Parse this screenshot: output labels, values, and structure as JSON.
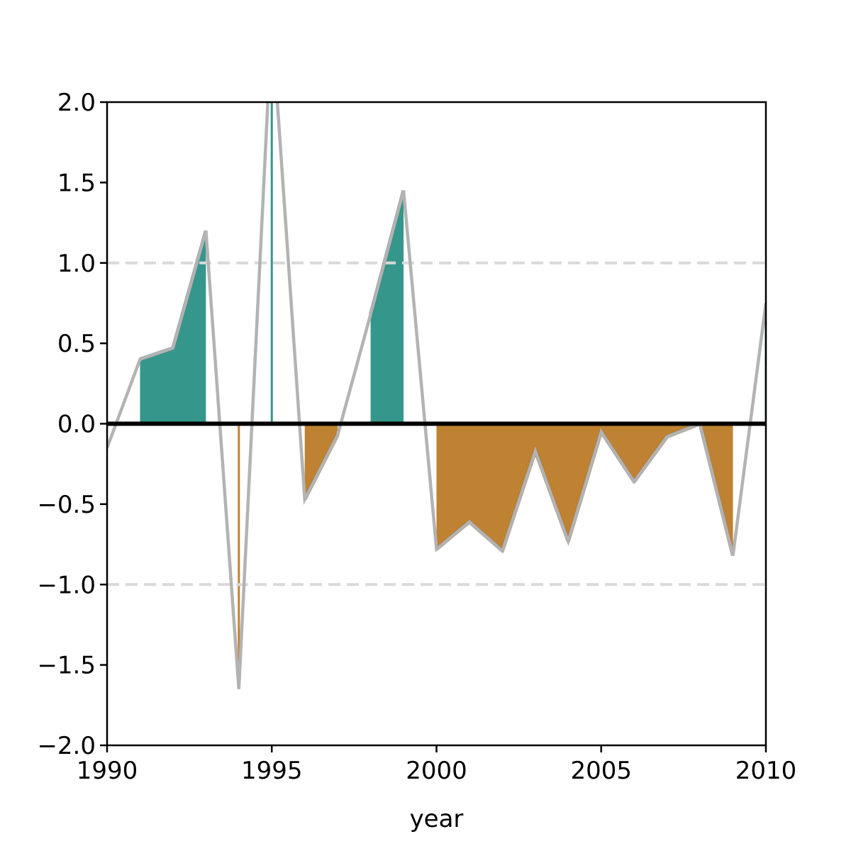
{
  "chart_data": {
    "type": "area",
    "title": "",
    "xlabel": "year",
    "ylabel": "",
    "xlim": [
      1990,
      2010
    ],
    "ylim": [
      -2.0,
      2.0
    ],
    "x_ticks": [
      1990,
      1995,
      2000,
      2005,
      2010
    ],
    "x_tick_labels": [
      "1990",
      "1995",
      "2000",
      "2005",
      "2010"
    ],
    "y_ticks": [
      -2.0,
      -1.5,
      -1.0,
      -0.5,
      0.0,
      0.5,
      1.0,
      1.5,
      2.0
    ],
    "y_tick_labels": [
      "−2.0",
      "−1.5",
      "−1.0",
      "−0.5",
      "0.0",
      "0.5",
      "1.0",
      "1.5",
      "2.0"
    ],
    "reference_lines": [
      1.0,
      -1.0
    ],
    "zero_line": 0.0,
    "grid": false,
    "legend": "none",
    "series": [
      {
        "x": [
          1990,
          1991,
          1992,
          1993,
          1994,
          1995,
          1996,
          1997,
          1998,
          1999,
          2000,
          2001,
          2002,
          2003,
          2004,
          2005,
          2006,
          2007,
          2008,
          2009,
          2010
        ],
        "values": [
          -0.15,
          0.4,
          0.47,
          1.2,
          -1.65,
          2.5,
          -0.47,
          -0.07,
          0.68,
          1.45,
          -0.78,
          -0.61,
          -0.79,
          -0.17,
          -0.73,
          -0.05,
          -0.36,
          -0.08,
          0.0,
          -0.82,
          0.75
        ]
      }
    ],
    "positive_fill_ranges": [
      [
        1991,
        1993
      ],
      [
        1995,
        1995
      ],
      [
        1998,
        1999
      ],
      [
        2010,
        2010
      ]
    ],
    "negative_fill_ranges": [
      [
        1994,
        1994
      ],
      [
        1996,
        1997
      ],
      [
        2000,
        2009
      ]
    ],
    "colors": {
      "positive_fill": "#35968c",
      "positive_edge": "#2a6a62",
      "negative_fill": "#bf8132",
      "negative_edge": "#7f5a24",
      "line": "#b3b3b3",
      "reference": "#d9d9d9",
      "zero": "#000000"
    }
  }
}
